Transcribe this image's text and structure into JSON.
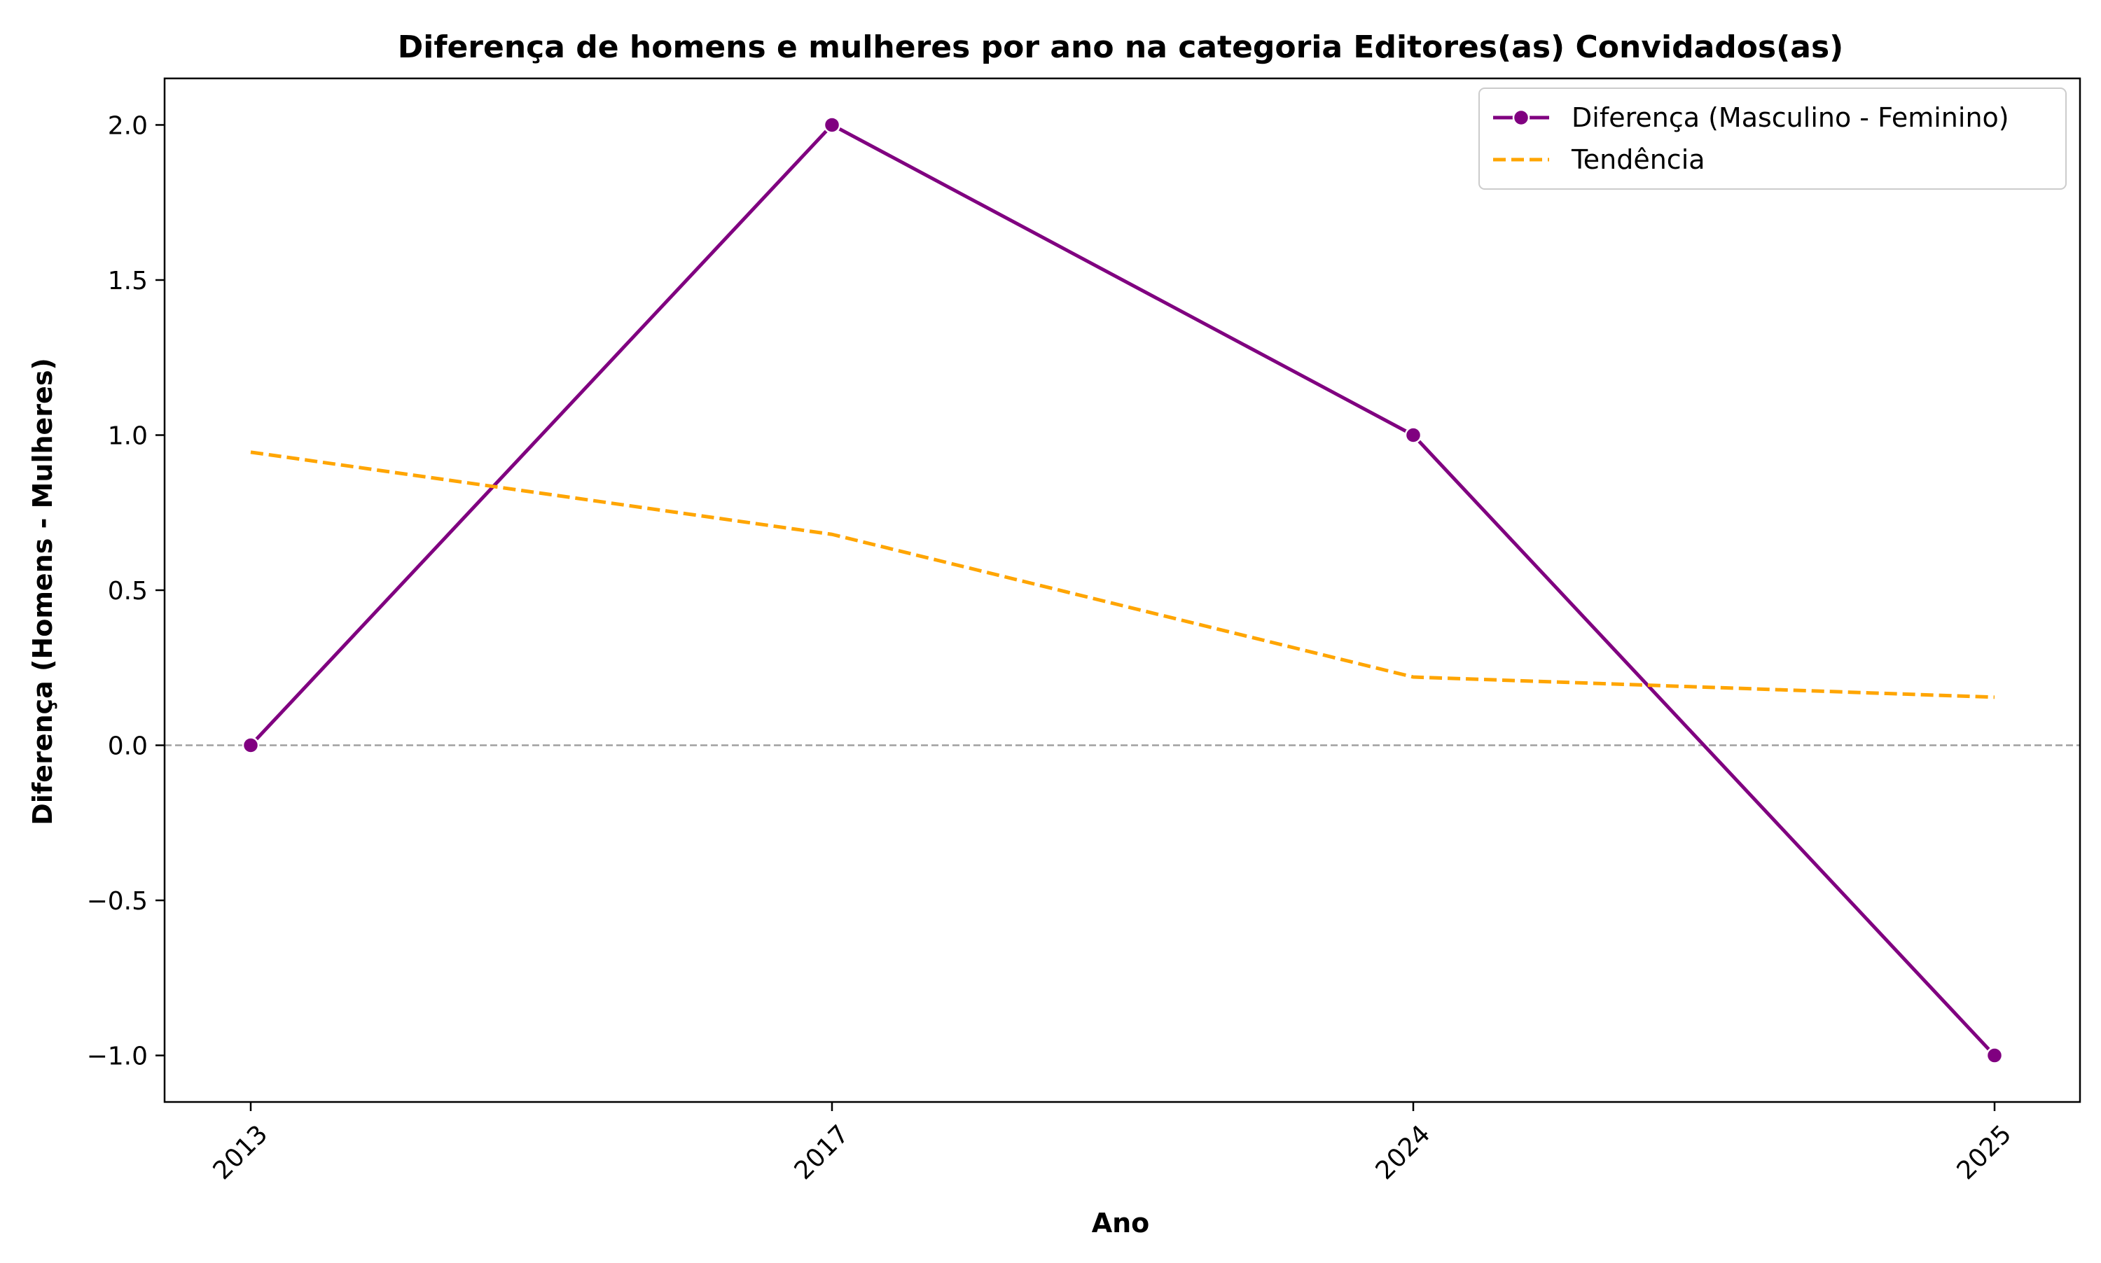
{
  "chart_data": {
    "type": "line",
    "title": "Diferença de homens e mulheres por ano na categoria Editores(as) Convidados(as)",
    "xlabel": "Ano",
    "ylabel": "Diferença (Homens - Mulheres)",
    "categories": [
      "2013",
      "2017",
      "2024",
      "2025"
    ],
    "ylim": [
      -1.15,
      2.15
    ],
    "yticks": [
      -1.0,
      -0.5,
      0.0,
      0.5,
      1.0,
      1.5,
      2.0
    ],
    "ytick_labels": [
      "−1.0",
      "−0.5",
      "0.0",
      "0.5",
      "1.0",
      "1.5",
      "2.0"
    ],
    "reference_line": 0.0,
    "grid": false,
    "legend_position": "top-right",
    "series": [
      {
        "name": "Diferença (Masculino - Feminino)",
        "values": [
          0,
          2,
          1,
          -1
        ],
        "color": "#800080",
        "style": "solid-with-markers"
      },
      {
        "name": "Tendência",
        "values": [
          0.945,
          0.68,
          0.22,
          0.155
        ],
        "color": "#FFA500",
        "style": "dashed"
      }
    ]
  }
}
